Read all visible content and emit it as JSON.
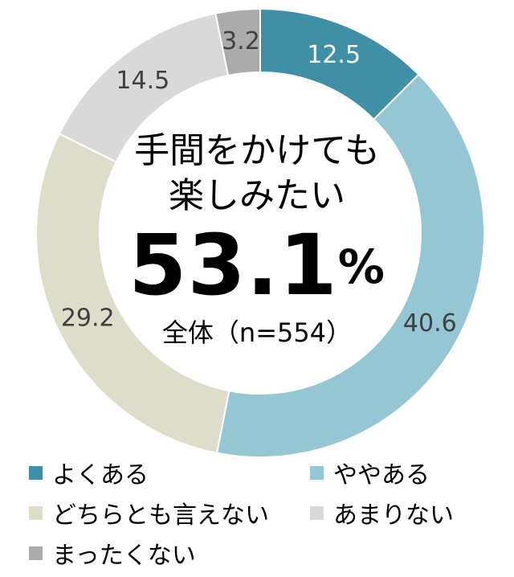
{
  "chart_data": {
    "type": "pie",
    "series": [
      {
        "category": "よくある",
        "value": 12.5,
        "label": "12.5",
        "color": "#3F8FA6",
        "label_color": "#ffffff"
      },
      {
        "category": "ややある",
        "value": 40.6,
        "label": "40.6",
        "color": "#94C6D3",
        "label_color": "#404040"
      },
      {
        "category": "どちらとも言えない",
        "value": 29.2,
        "label": "29.2",
        "color": "#DEDDC9",
        "label_color": "#404040"
      },
      {
        "category": "あまりない",
        "value": 14.5,
        "label": "14.5",
        "color": "#D9D9D9",
        "label_color": "#404040"
      },
      {
        "category": "まったくない",
        "value": 3.2,
        "label": "3.2",
        "color": "#ABABAB",
        "label_color": "#404040"
      }
    ],
    "center": {
      "title_line1": "手間をかけても",
      "title_line2": "楽しみたい",
      "value": "53.1",
      "unit": "%",
      "subtitle": "全体（n=554）"
    },
    "legend": [
      {
        "label": "よくある",
        "color": "#3F8FA6"
      },
      {
        "label": "ややある",
        "color": "#94C6D3"
      },
      {
        "label": "どちらとも言えない",
        "color": "#DEDDC9"
      },
      {
        "label": "あまりない",
        "color": "#D9D9D9"
      },
      {
        "label": "まったくない",
        "color": "#ABABAB"
      }
    ],
    "legend_placement": "bottom"
  }
}
